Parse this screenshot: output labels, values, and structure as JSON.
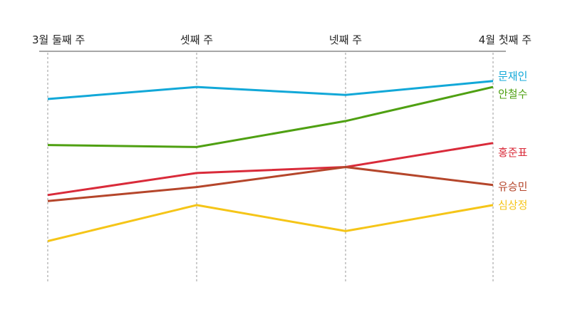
{
  "chart_data": {
    "type": "line",
    "title": "",
    "xlabel": "",
    "ylabel": "",
    "categories": [
      "3월 둘째 주",
      "셋째 주",
      "넷째 주",
      "4월 첫째 주"
    ],
    "grid": "vertical dashed lines at each week",
    "legend": "labels at right end of each line",
    "y_axis": "hidden (relative rank/level only)",
    "ylim": [
      0,
      100
    ],
    "series": [
      {
        "name": "문재인",
        "color": "#12a8d8",
        "values": [
          84,
          90,
          86,
          93
        ]
      },
      {
        "name": "안철수",
        "color": "#4fa012",
        "values": [
          61,
          60,
          73,
          90
        ]
      },
      {
        "name": "홍준표",
        "color": "#d92b3a",
        "values": [
          36,
          47,
          50,
          62
        ]
      },
      {
        "name": "유승민",
        "color": "#b5462b",
        "values": [
          33,
          40,
          50,
          41
        ]
      },
      {
        "name": "심상정",
        "color": "#f5c518",
        "values": [
          13,
          31,
          18,
          31
        ]
      }
    ]
  }
}
